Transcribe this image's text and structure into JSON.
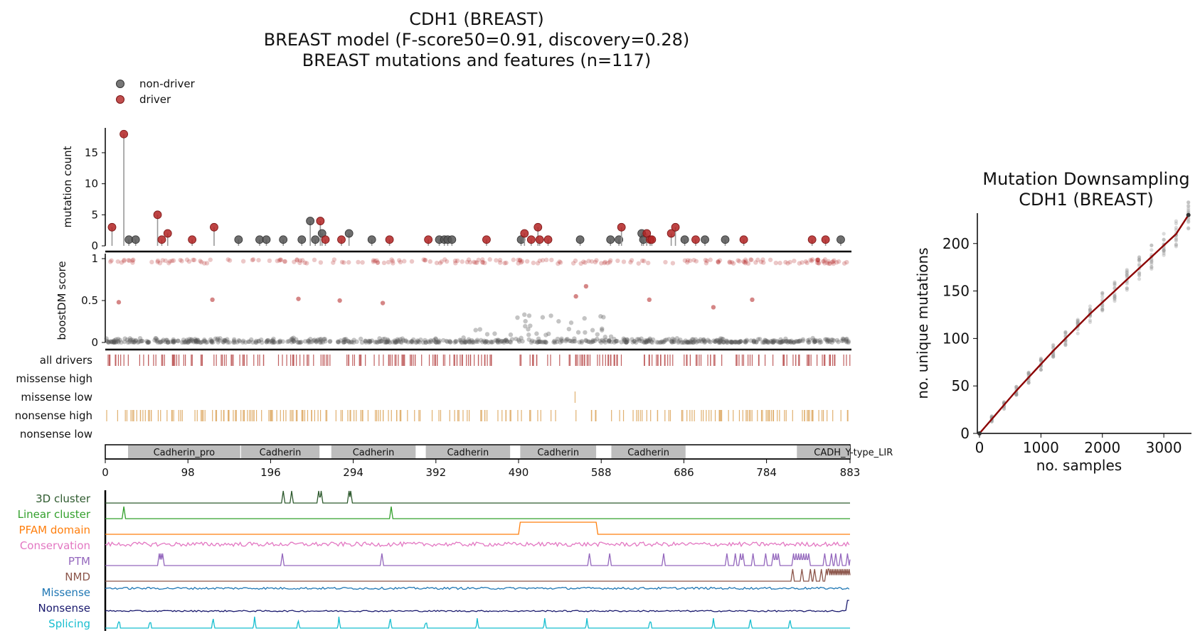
{
  "figure": {
    "title_lines": [
      "CDH1 (BREAST)",
      "BREAST model (F-score50=0.91, discovery=0.28)",
      "BREAST mutations and features (n=117)"
    ]
  },
  "legend": {
    "items": [
      {
        "label": "non-driver",
        "color": "#555555"
      },
      {
        "label": "driver",
        "color": "#b22222"
      }
    ]
  },
  "colors": {
    "driver": "#b22222",
    "nondriver": "#555555",
    "driver_tick": "#c06060",
    "nonsense_tick": "#e0b070",
    "domain_fill": "#bdbdbd"
  },
  "chart_data": [
    {
      "type": "scatter",
      "role": "lollipop",
      "ylabel": "mutation count",
      "xlim": [
        0,
        883
      ],
      "ylim": [
        0,
        19
      ],
      "yticks": [
        0,
        5,
        10,
        15
      ],
      "points": [
        {
          "x": 8,
          "count": 3,
          "driver": true
        },
        {
          "x": 22,
          "count": 18,
          "driver": true
        },
        {
          "x": 28,
          "count": 1,
          "driver": false
        },
        {
          "x": 36,
          "count": 1,
          "driver": false
        },
        {
          "x": 62,
          "count": 5,
          "driver": true
        },
        {
          "x": 67,
          "count": 1,
          "driver": true
        },
        {
          "x": 74,
          "count": 2,
          "driver": true
        },
        {
          "x": 103,
          "count": 1,
          "driver": true
        },
        {
          "x": 129,
          "count": 3,
          "driver": true
        },
        {
          "x": 158,
          "count": 1,
          "driver": false
        },
        {
          "x": 183,
          "count": 1,
          "driver": false
        },
        {
          "x": 191,
          "count": 1,
          "driver": false
        },
        {
          "x": 211,
          "count": 1,
          "driver": false
        },
        {
          "x": 233,
          "count": 1,
          "driver": false
        },
        {
          "x": 243,
          "count": 4,
          "driver": false
        },
        {
          "x": 249,
          "count": 1,
          "driver": false
        },
        {
          "x": 255,
          "count": 4,
          "driver": true
        },
        {
          "x": 257,
          "count": 2,
          "driver": false
        },
        {
          "x": 261,
          "count": 1,
          "driver": true
        },
        {
          "x": 280,
          "count": 1,
          "driver": true
        },
        {
          "x": 289,
          "count": 2,
          "driver": false
        },
        {
          "x": 316,
          "count": 1,
          "driver": false
        },
        {
          "x": 337,
          "count": 1,
          "driver": true
        },
        {
          "x": 383,
          "count": 1,
          "driver": true
        },
        {
          "x": 396,
          "count": 1,
          "driver": false
        },
        {
          "x": 402,
          "count": 1,
          "driver": false
        },
        {
          "x": 406,
          "count": 1,
          "driver": false
        },
        {
          "x": 411,
          "count": 1,
          "driver": false
        },
        {
          "x": 452,
          "count": 1,
          "driver": true
        },
        {
          "x": 493,
          "count": 1,
          "driver": false
        },
        {
          "x": 497,
          "count": 2,
          "driver": true
        },
        {
          "x": 505,
          "count": 1,
          "driver": true
        },
        {
          "x": 513,
          "count": 3,
          "driver": true
        },
        {
          "x": 515,
          "count": 1,
          "driver": true
        },
        {
          "x": 525,
          "count": 1,
          "driver": true
        },
        {
          "x": 563,
          "count": 1,
          "driver": false
        },
        {
          "x": 599,
          "count": 1,
          "driver": false
        },
        {
          "x": 609,
          "count": 1,
          "driver": false
        },
        {
          "x": 612,
          "count": 3,
          "driver": true
        },
        {
          "x": 636,
          "count": 2,
          "driver": false
        },
        {
          "x": 638,
          "count": 1,
          "driver": false
        },
        {
          "x": 642,
          "count": 2,
          "driver": true
        },
        {
          "x": 646,
          "count": 1,
          "driver": true
        },
        {
          "x": 648,
          "count": 1,
          "driver": true
        },
        {
          "x": 671,
          "count": 2,
          "driver": true
        },
        {
          "x": 676,
          "count": 3,
          "driver": true
        },
        {
          "x": 687,
          "count": 1,
          "driver": false
        },
        {
          "x": 700,
          "count": 1,
          "driver": true
        },
        {
          "x": 711,
          "count": 1,
          "driver": false
        },
        {
          "x": 735,
          "count": 1,
          "driver": false
        },
        {
          "x": 757,
          "count": 1,
          "driver": true
        },
        {
          "x": 838,
          "count": 1,
          "driver": true
        },
        {
          "x": 854,
          "count": 1,
          "driver": true
        },
        {
          "x": 872,
          "count": 1,
          "driver": false
        }
      ]
    },
    {
      "type": "scatter",
      "role": "boostdm-score",
      "ylabel": "boostDM score",
      "xlim": [
        0,
        883
      ],
      "ylim": [
        0,
        1
      ],
      "yticks": [
        0,
        0.5,
        1
      ],
      "ytick_labels": [
        "0",
        "0.5",
        "1"
      ],
      "notable_points": [
        {
          "x": 16,
          "y": 0.48
        },
        {
          "x": 127,
          "y": 0.51
        },
        {
          "x": 229,
          "y": 0.52
        },
        {
          "x": 278,
          "y": 0.5
        },
        {
          "x": 329,
          "y": 0.47
        },
        {
          "x": 570,
          "y": 0.67
        },
        {
          "x": 558,
          "y": 0.55
        },
        {
          "x": 645,
          "y": 0.51
        },
        {
          "x": 767,
          "y": 0.51
        },
        {
          "x": 721,
          "y": 0.42
        }
      ]
    },
    {
      "type": "heatmap",
      "role": "mutation-tracks",
      "tracks": [
        "all drivers",
        "missense high",
        "missense low",
        "nonsense high",
        "nonsense low"
      ]
    },
    {
      "type": "bar",
      "role": "protein-domains",
      "xlim": [
        0,
        883
      ],
      "xticks": [
        0,
        98,
        196,
        294,
        392,
        490,
        588,
        686,
        784,
        883
      ],
      "domains": [
        {
          "label": "Cadherin_pro",
          "start": 27,
          "end": 160
        },
        {
          "label": "Cadherin",
          "start": 161,
          "end": 254
        },
        {
          "label": "Cadherin",
          "start": 268,
          "end": 368
        },
        {
          "label": "Cadherin",
          "start": 380,
          "end": 480
        },
        {
          "label": "Cadherin",
          "start": 492,
          "end": 582
        },
        {
          "label": "Cadherin",
          "start": 600,
          "end": 688
        },
        {
          "label": "CADH_Y-type_LIR",
          "start": 820,
          "end": 883
        }
      ]
    },
    {
      "type": "line",
      "role": "feature-tracks",
      "xlim": [
        0,
        883
      ],
      "tracks": [
        {
          "name": "3D cluster",
          "color": "#2e5a2e",
          "peaks": [
            211,
            221,
            253,
            256,
            289,
            291
          ]
        },
        {
          "name": "Linear cluster",
          "color": "#33a02c",
          "peaks": [
            22,
            339
          ]
        },
        {
          "name": "PFAM domain",
          "color": "#ff7f0e",
          "blocks": [
            [
              492,
              582
            ]
          ]
        },
        {
          "name": "Conservation",
          "color": "#e377c2"
        },
        {
          "name": "PTM",
          "color": "#9467bd",
          "peaks": [
            64,
            66,
            68,
            210,
            328,
            574,
            598,
            662,
            737,
            747,
            753,
            756,
            768,
            783,
            792,
            795,
            798,
            816,
            819,
            822,
            825,
            828,
            831,
            834,
            853,
            861,
            866,
            872,
            880,
            884
          ]
        },
        {
          "name": "NMD",
          "color": "#8c564b",
          "peaks": [
            815,
            826,
            836,
            841,
            849,
            855,
            857,
            858,
            860,
            862,
            864,
            866,
            868,
            870,
            872,
            874,
            876,
            878,
            880,
            882
          ]
        },
        {
          "name": "Missense",
          "color": "#1f77b4"
        },
        {
          "name": "Nonsense",
          "color": "#1a1a6e"
        },
        {
          "name": "Splicing",
          "color": "#17becf",
          "peaks": [
            16,
            53,
            128,
            177,
            229,
            277,
            338,
            380,
            441,
            521,
            571,
            646,
            721,
            765,
            812
          ]
        }
      ]
    },
    {
      "type": "line",
      "role": "downsampling",
      "title": "Mutation Downsampling\nCDH1 (BREAST)",
      "xlabel": "no. samples",
      "ylabel": "no. unique mutations",
      "xlim": [
        0,
        3450
      ],
      "ylim": [
        0,
        232
      ],
      "xticks": [
        0,
        1000,
        2000,
        3000
      ],
      "yticks": [
        0,
        50,
        100,
        150,
        200
      ],
      "series": [
        {
          "x": [
            0,
            200,
            400,
            600,
            800,
            1000,
            1200,
            1400,
            1600,
            1800,
            2000,
            2200,
            2400,
            2600,
            2800,
            3000,
            3200,
            3400
          ],
          "y": [
            0,
            15,
            30,
            45,
            59,
            73,
            87,
            100,
            113,
            126,
            138,
            150,
            162,
            174,
            186,
            198,
            210,
            230
          ]
        }
      ]
    }
  ]
}
